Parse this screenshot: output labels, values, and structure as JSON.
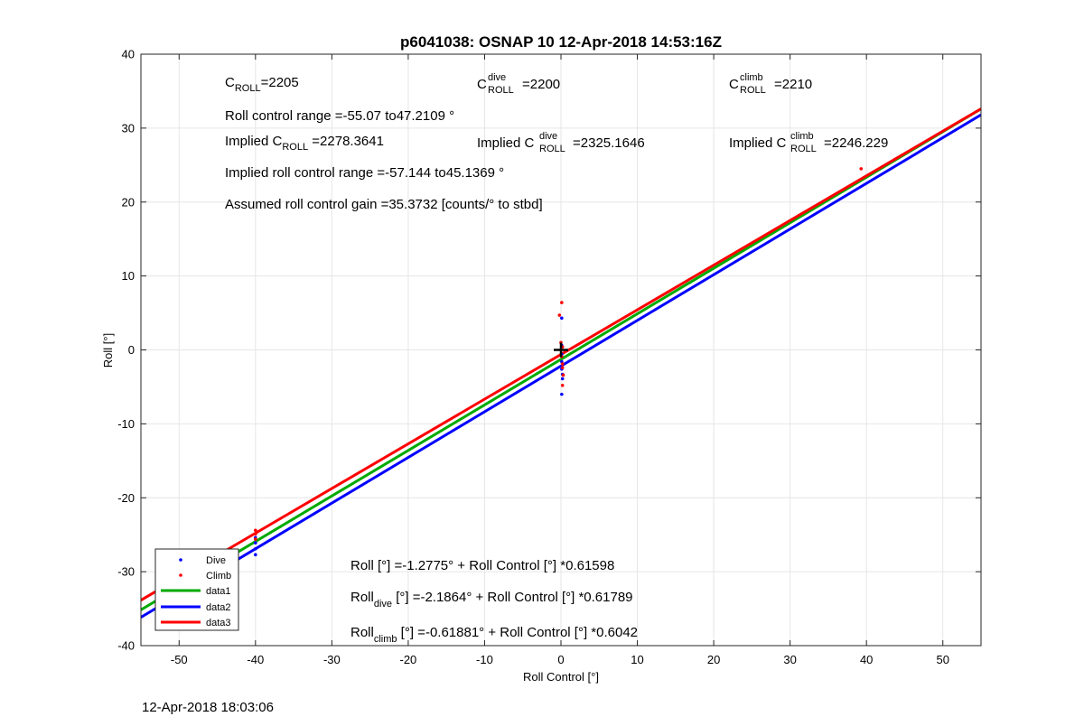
{
  "chart_data": {
    "type": "scatter",
    "title": "p6041038: OSNAP 10 12-Apr-2018 14:53:16Z",
    "xlabel": "Roll Control [°]",
    "ylabel": "Roll [°]",
    "xlim": [
      -55,
      55
    ],
    "ylim": [
      -40,
      40
    ],
    "xticks": [
      -50,
      -40,
      -30,
      -20,
      -10,
      0,
      10,
      20,
      30,
      40,
      50
    ],
    "yticks": [
      -40,
      -30,
      -20,
      -10,
      0,
      10,
      20,
      30,
      40
    ],
    "grid": true,
    "legend_position": "bottom-left",
    "series": [
      {
        "name": "Dive",
        "kind": "points",
        "color": "#0000ff",
        "points": [
          [
            -50,
            -29.2
          ],
          [
            -40,
            -25.4
          ],
          [
            -40,
            -26.1
          ],
          [
            -40,
            -26.9
          ],
          [
            -40,
            -27.7
          ],
          [
            0.1,
            4.3
          ],
          [
            0.1,
            0.6
          ],
          [
            0.1,
            -0.6
          ],
          [
            0.1,
            -1.6
          ],
          [
            0.1,
            -2.6
          ],
          [
            0.2,
            -3.3
          ],
          [
            0.2,
            -3.9
          ],
          [
            0.1,
            -6.0
          ]
        ]
      },
      {
        "name": "Climb",
        "kind": "points",
        "color": "#ff0000",
        "points": [
          [
            -40,
            -24.4
          ],
          [
            -40,
            -24.9
          ],
          [
            -40,
            -25.6
          ],
          [
            0.1,
            6.4
          ],
          [
            -0.2,
            4.7
          ],
          [
            0.0,
            1.0
          ],
          [
            0.2,
            0.4
          ],
          [
            0.1,
            -0.9
          ],
          [
            0.2,
            -1.9
          ],
          [
            0.2,
            -2.4
          ],
          [
            0.3,
            -3.4
          ],
          [
            0.2,
            -4.8
          ],
          [
            39.3,
            24.5
          ]
        ]
      },
      {
        "name": "data1",
        "kind": "line",
        "color": "#00aa00",
        "intercept": -1.2775,
        "slope": 0.61598
      },
      {
        "name": "data2",
        "kind": "line",
        "color": "#0000ff",
        "intercept": -2.1864,
        "slope": 0.61789
      },
      {
        "name": "data3",
        "kind": "line",
        "color": "#ff0000",
        "intercept": -0.61881,
        "slope": 0.6042
      }
    ],
    "marker": {
      "symbol": "+",
      "x": 0,
      "y": 0
    },
    "annotations": {
      "c_roll": {
        "base": "C",
        "sub": "ROLL",
        "text": "=2205"
      },
      "c_roll_dive": {
        "base": "C",
        "sup": "dive",
        "sub": "ROLL",
        "text": " =2200"
      },
      "c_roll_climb": {
        "base": "C",
        "sup": "climb",
        "sub": "ROLL",
        "text": " =2210"
      },
      "roll_range": "Roll control range =-55.07 to47.2109 °",
      "implied_c_roll": {
        "pre": "Implied C",
        "sub": "ROLL",
        "text": " =2278.3641"
      },
      "implied_c_roll_dive": {
        "pre": "Implied C",
        "sup": "dive",
        "sub": "ROLL",
        "text": " =2325.1646"
      },
      "implied_c_roll_climb": {
        "pre": "Implied C",
        "sup": "climb",
        "sub": "ROLL",
        "text": " =2246.229"
      },
      "implied_range": "Implied roll control range =-57.144 to45.1369 °",
      "gain": "Assumed roll control gain =35.3732 [counts/° to stbd]",
      "fit_all": "Roll [°] =-1.2775° + Roll Control [°] *0.61598",
      "fit_dive": {
        "base": "Roll",
        "sub": "dive",
        "text": " [°] =-2.1864° + Roll Control [°] *0.61789"
      },
      "fit_climb": {
        "base": "Roll",
        "sub": "climb",
        "text": " [°] =-0.61881° + Roll Control [°] *0.6042"
      }
    }
  },
  "footer": {
    "timestamp": "12-Apr-2018 18:03:06"
  }
}
